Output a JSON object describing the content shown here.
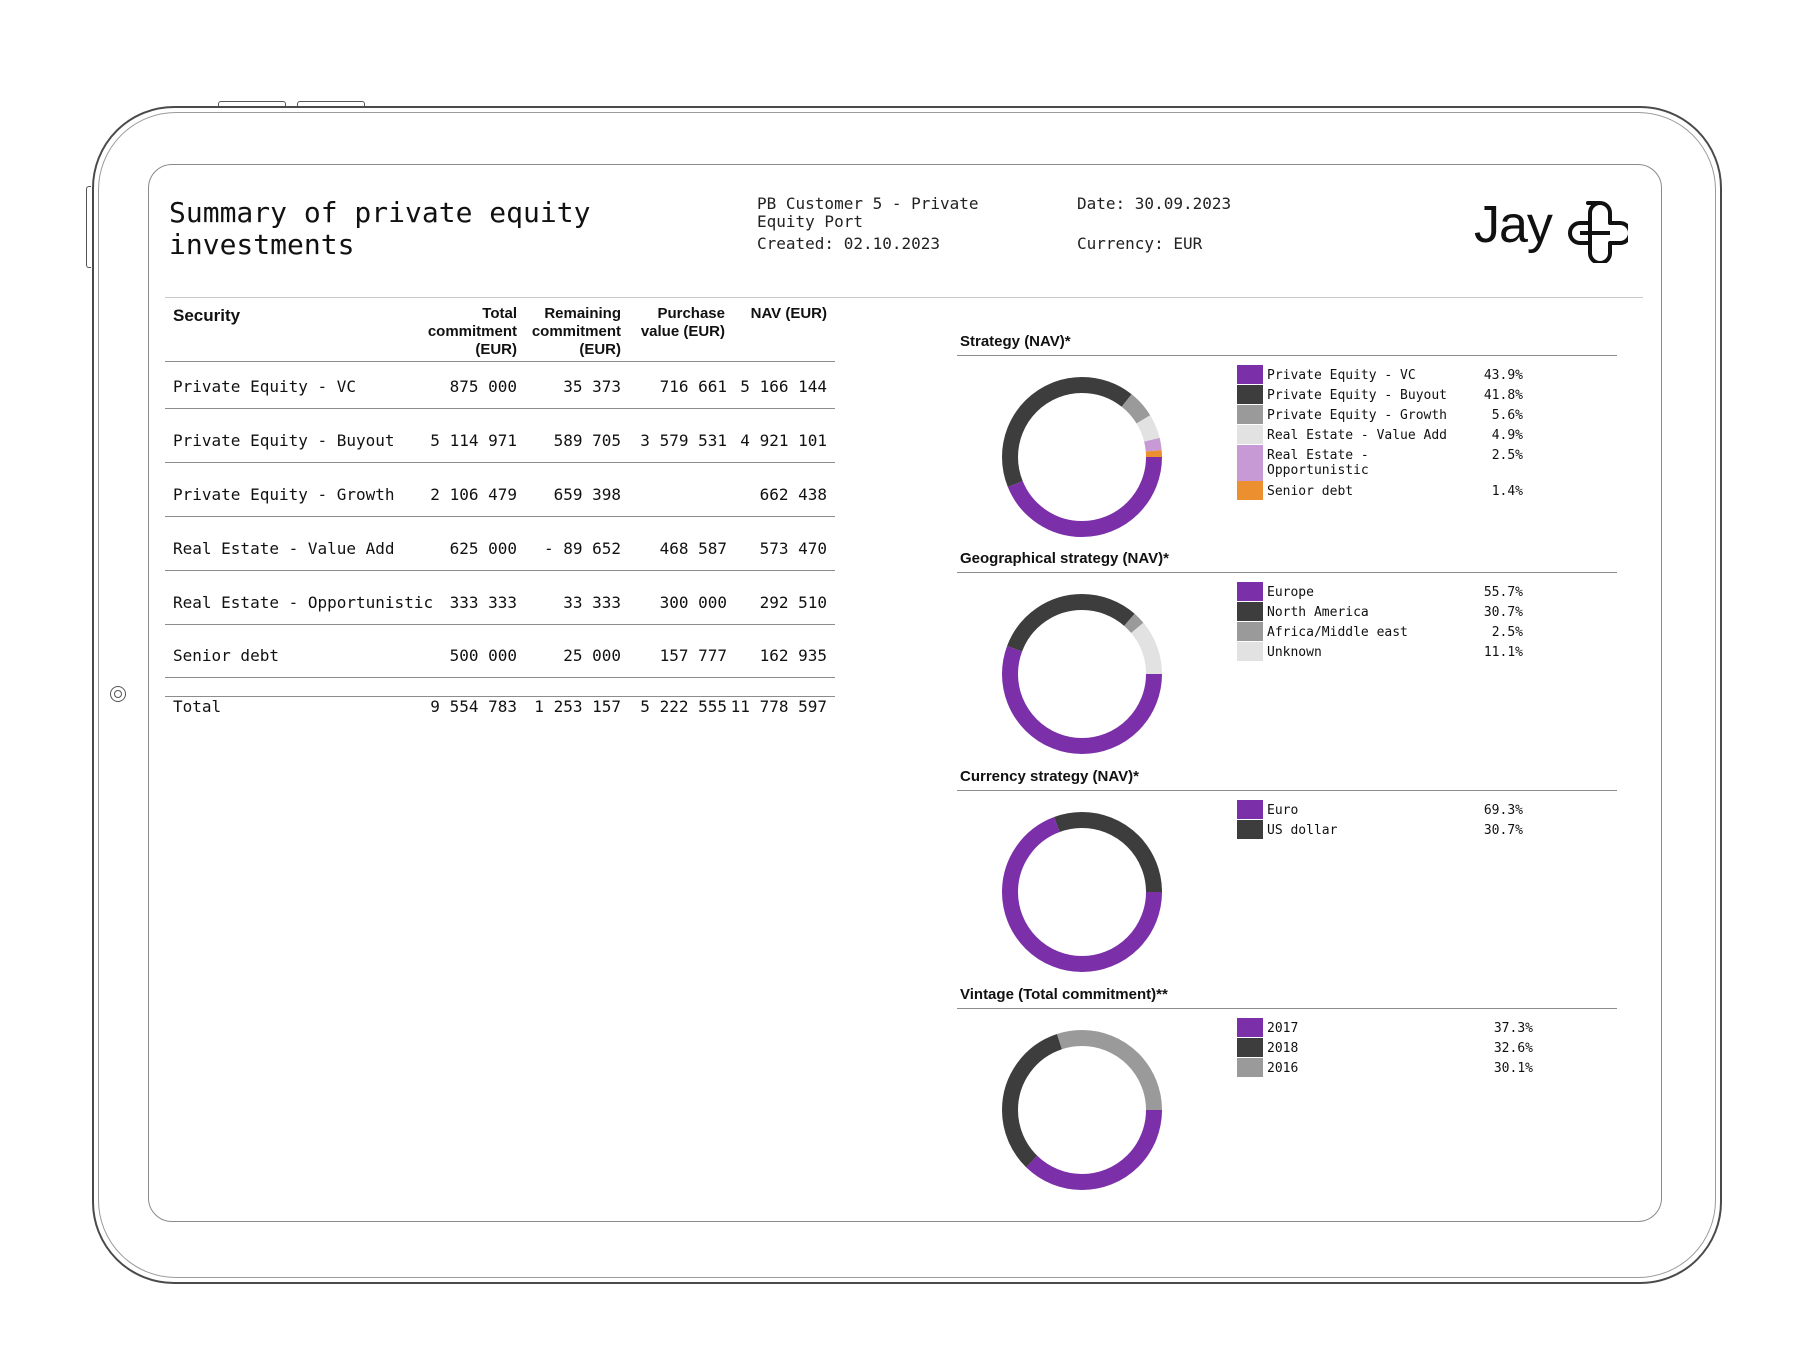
{
  "report": {
    "title": "Summary of private equity investments",
    "customer": "PB Customer 5 - Private Equity Port",
    "created": "Created: 02.10.2023",
    "date": "Date: 30.09.2023",
    "currency": "Currency: EUR",
    "logo_text": "Jay"
  },
  "table": {
    "headers": {
      "security": "Security",
      "total_commitment": "Total commitment (EUR)",
      "remaining_commitment": "Remaining commitment (EUR)",
      "purchase_value": "Purchase value (EUR)",
      "nav": "NAV (EUR)"
    },
    "rows": [
      {
        "security": "Private Equity - VC",
        "total": "875 000",
        "remaining": "35 373",
        "purchase": "716 661",
        "nav": "5 166 144"
      },
      {
        "security": "Private Equity - Buyout",
        "total": "5 114 971",
        "remaining": "589 705",
        "purchase": "3 579 531",
        "nav": "4 921 101"
      },
      {
        "security": "Private Equity - Growth",
        "total": "2 106 479",
        "remaining": "659 398",
        "purchase": "",
        "nav": "662 438"
      },
      {
        "security": "Real Estate - Value Add",
        "total": "625 000",
        "remaining": "- 89 652",
        "purchase": "468 587",
        "nav": "573 470"
      },
      {
        "security": "Real Estate - Opportunistic",
        "total": "333 333",
        "remaining": "33 333",
        "purchase": "300 000",
        "nav": "292 510"
      },
      {
        "security": "Senior debt",
        "total": "500 000",
        "remaining": "25 000",
        "purchase": "157 777",
        "nav": "162 935"
      }
    ],
    "total": {
      "security": "Total",
      "total": "9 554 783",
      "remaining": "1 253 157",
      "purchase": "5 222 555",
      "nav": "11 778 597"
    }
  },
  "colors": {
    "purple": "#7b2fa8",
    "dark": "#3d3d3d",
    "gray": "#9a9a9a",
    "light": "#e2e2e2",
    "lilac": "#c79ad6",
    "orange": "#ec8f2f"
  },
  "chart_data": [
    {
      "type": "pie",
      "title": "Strategy (NAV)*",
      "categories": [
        "Private Equity - VC",
        "Private Equity - Buyout",
        "Private Equity - Growth",
        "Real Estate - Value Add",
        "Real Estate - Opportunistic",
        "Senior debt"
      ],
      "values": [
        43.9,
        41.8,
        5.6,
        4.9,
        2.5,
        1.4
      ],
      "labels": [
        "43.9%",
        "41.8%",
        "5.6%",
        "4.9%",
        "2.5%",
        "1.4%"
      ],
      "colors": [
        "#7b2fa8",
        "#3d3d3d",
        "#9a9a9a",
        "#e2e2e2",
        "#c79ad6",
        "#ec8f2f"
      ]
    },
    {
      "type": "pie",
      "title": "Geographical strategy (NAV)*",
      "categories": [
        "Europe",
        "North America",
        "Africa/Middle east",
        "Unknown"
      ],
      "values": [
        55.7,
        30.7,
        2.5,
        11.1
      ],
      "labels": [
        "55.7%",
        "30.7%",
        "2.5%",
        "11.1%"
      ],
      "colors": [
        "#7b2fa8",
        "#3d3d3d",
        "#9a9a9a",
        "#e2e2e2"
      ]
    },
    {
      "type": "pie",
      "title": "Currency strategy (NAV)*",
      "categories": [
        "Euro",
        "US dollar"
      ],
      "values": [
        69.3,
        30.7
      ],
      "labels": [
        "69.3%",
        "30.7%"
      ],
      "colors": [
        "#7b2fa8",
        "#3d3d3d"
      ]
    },
    {
      "type": "pie",
      "title": "Vintage (Total commitment)**",
      "categories": [
        "2017",
        "2018",
        "2016"
      ],
      "values": [
        37.3,
        32.6,
        30.1
      ],
      "labels": [
        "37.3%",
        "32.6%",
        "30.1%"
      ],
      "colors": [
        "#7b2fa8",
        "#3d3d3d",
        "#9a9a9a"
      ]
    }
  ]
}
